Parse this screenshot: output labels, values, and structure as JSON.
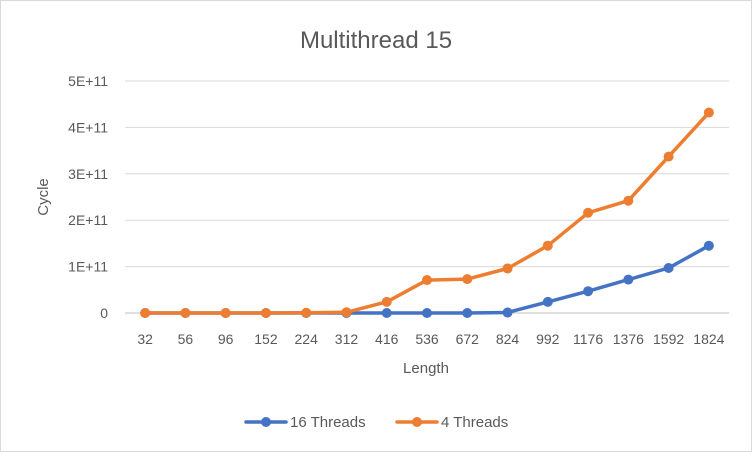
{
  "chart_data": {
    "type": "line",
    "title": "Multithread 15",
    "xlabel": "Length",
    "ylabel": "Cycle",
    "categories": [
      "32",
      "56",
      "96",
      "152",
      "224",
      "312",
      "416",
      "536",
      "672",
      "824",
      "992",
      "1176",
      "1376",
      "1592",
      "1824"
    ],
    "series": [
      {
        "name": "16 Threads",
        "color": "#4472C4",
        "values": [
          0,
          0,
          0,
          0,
          0,
          0,
          0,
          0,
          0,
          1000000000,
          24000000000,
          47000000000,
          72000000000,
          97000000000,
          145000000000
        ]
      },
      {
        "name": "4 Threads",
        "color": "#ED7D31",
        "values": [
          0,
          0,
          0,
          0,
          500000000,
          1500000000,
          24000000000,
          71000000000,
          73000000000,
          96000000000,
          145000000000,
          216000000000,
          242000000000,
          337000000000,
          432000000000
        ]
      }
    ],
    "ylim": [
      0,
      500000000000
    ],
    "yticks": [
      "0",
      "1E+11",
      "2E+11",
      "3E+11",
      "4E+11",
      "5E+11"
    ],
    "grid": true,
    "legend_position": "bottom"
  }
}
